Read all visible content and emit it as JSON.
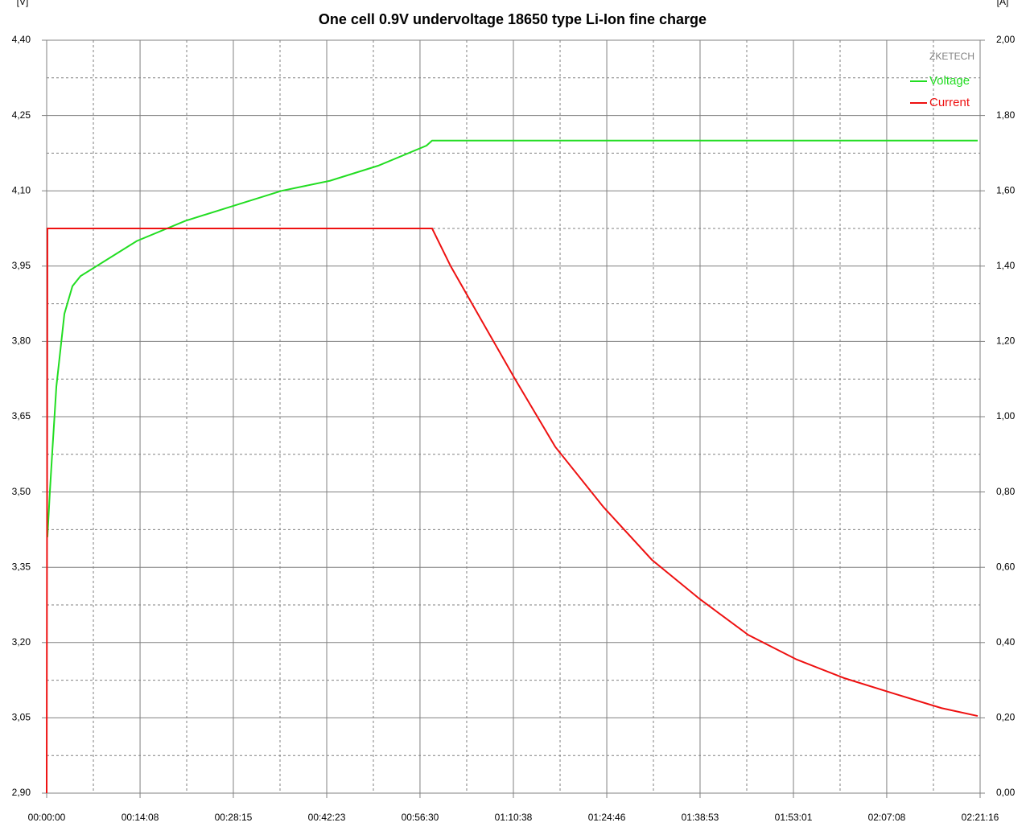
{
  "chart_data": {
    "type": "line",
    "title": "One cell 0.9V undervoltage 18650 type Li-Ion fine charge",
    "y_unit_label": "[V]",
    "y2_unit_label": "[A]",
    "watermark": "ZKETECH",
    "xlim": [
      0,
      8476
    ],
    "xticks": [
      {
        "value": 0,
        "label": "00:00:00"
      },
      {
        "value": 848,
        "label": "00:14:08"
      },
      {
        "value": 1695,
        "label": "00:28:15"
      },
      {
        "value": 2543,
        "label": "00:42:23"
      },
      {
        "value": 3390,
        "label": "00:56:30"
      },
      {
        "value": 4238,
        "label": "01:10:38"
      },
      {
        "value": 5086,
        "label": "01:24:46"
      },
      {
        "value": 5933,
        "label": "01:38:53"
      },
      {
        "value": 6781,
        "label": "01:53:01"
      },
      {
        "value": 7628,
        "label": "02:07:08"
      },
      {
        "value": 8476,
        "label": "02:21:16"
      }
    ],
    "ylim": [
      2.9,
      4.4
    ],
    "yticks": [
      {
        "value": 2.9,
        "label": "2,90"
      },
      {
        "value": 3.05,
        "label": "3,05"
      },
      {
        "value": 3.2,
        "label": "3,20"
      },
      {
        "value": 3.35,
        "label": "3,35"
      },
      {
        "value": 3.5,
        "label": "3,50"
      },
      {
        "value": 3.65,
        "label": "3,65"
      },
      {
        "value": 3.8,
        "label": "3,80"
      },
      {
        "value": 3.95,
        "label": "3,95"
      },
      {
        "value": 4.1,
        "label": "4,10"
      },
      {
        "value": 4.25,
        "label": "4,25"
      },
      {
        "value": 4.4,
        "label": "4,40"
      }
    ],
    "y2lim": [
      0,
      2
    ],
    "y2ticks": [
      {
        "value": 0,
        "label": "0,00"
      },
      {
        "value": 0.2,
        "label": "0,20"
      },
      {
        "value": 0.4,
        "label": "0,40"
      },
      {
        "value": 0.6,
        "label": "0,60"
      },
      {
        "value": 0.8,
        "label": "0,80"
      },
      {
        "value": 1.0,
        "label": "1,00"
      },
      {
        "value": 1.2,
        "label": "1,20"
      },
      {
        "value": 1.4,
        "label": "1,40"
      },
      {
        "value": 1.6,
        "label": "1,60"
      },
      {
        "value": 1.8,
        "label": "1,80"
      },
      {
        "value": 2.0,
        "label": "2,00"
      }
    ],
    "grid": true,
    "legend": "top-right",
    "series": [
      {
        "name": "Voltage",
        "color": "#22dd22",
        "x": [
          7,
          29,
          51,
          88,
          161,
          234,
          307,
          453,
          818,
          1257,
          1695,
          2134,
          2572,
          3010,
          3449,
          3500,
          8454
        ],
        "values": [
          3.41,
          3.5,
          3.58,
          3.71,
          3.855,
          3.91,
          3.93,
          3.95,
          4.0,
          4.04,
          4.07,
          4.1,
          4.12,
          4.15,
          4.19,
          4.2,
          4.2
        ]
      },
      {
        "name": "Current",
        "color": "#ee1111",
        "axis": "y2",
        "x": [
          0,
          7,
          3500,
          3668,
          3960,
          4253,
          4618,
          5056,
          5495,
          5933,
          6372,
          6810,
          7248,
          7687,
          8125,
          8454
        ],
        "values": [
          0,
          1.5,
          1.5,
          1.4,
          1.25,
          1.1,
          0.92,
          0.76,
          0.62,
          0.515,
          0.42,
          0.355,
          0.305,
          0.265,
          0.226,
          0.205
        ]
      }
    ]
  }
}
